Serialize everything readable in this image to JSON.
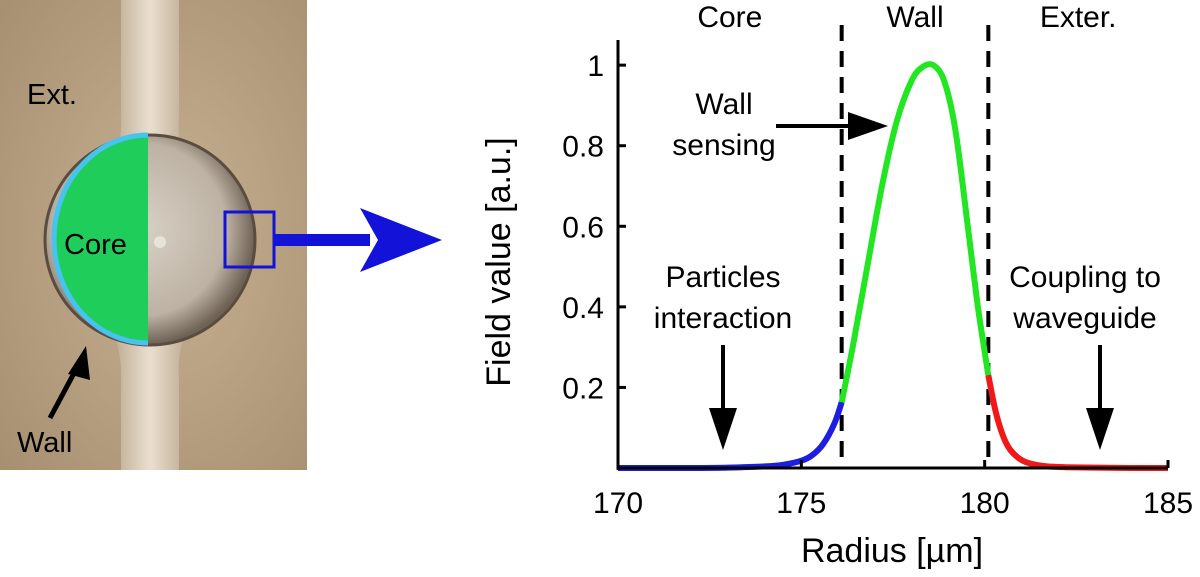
{
  "photo": {
    "labels": {
      "ext": "Ext.",
      "core": "Core",
      "wall": "Wall"
    },
    "colors": {
      "core_fill": "#1fce5a",
      "wall_outline": "#46c3ee",
      "inset_box": "#1212d8",
      "arrow": "#1212d8"
    }
  },
  "chart_data": {
    "type": "line",
    "xlabel": "Radius [µm]",
    "ylabel": "Field value [a.u.]",
    "xlim": [
      170,
      185
    ],
    "ylim": [
      0,
      1.05
    ],
    "xticks": [
      170,
      175,
      180,
      185
    ],
    "yticks": [
      0.2,
      0.4,
      0.6,
      0.8,
      1
    ],
    "grid": false,
    "region_labels": [
      "Core",
      "Wall",
      "Exter."
    ],
    "boundaries": [
      176.1,
      180.1
    ],
    "series": [
      {
        "region": "core",
        "color": "#1e1ee0",
        "x": [
          170,
          172,
          173,
          174,
          174.5,
          175,
          175.3,
          175.6,
          175.9,
          176.1
        ],
        "y": [
          0,
          0,
          0.001,
          0.004,
          0.008,
          0.018,
          0.032,
          0.06,
          0.11,
          0.163
        ]
      },
      {
        "region": "wall",
        "color": "#22e622",
        "x": [
          176.1,
          176.4,
          176.8,
          177.2,
          177.6,
          178.0,
          178.3,
          178.6,
          178.9,
          179.2,
          179.5,
          179.8,
          180.1
        ],
        "y": [
          0.163,
          0.3,
          0.5,
          0.7,
          0.86,
          0.96,
          0.995,
          1.0,
          0.96,
          0.84,
          0.63,
          0.41,
          0.23
        ]
      },
      {
        "region": "exterior",
        "color": "#f01818",
        "x": [
          180.1,
          180.3,
          180.5,
          180.7,
          181.0,
          181.3,
          181.7,
          182.2,
          183,
          184,
          185
        ],
        "y": [
          0.23,
          0.14,
          0.08,
          0.045,
          0.02,
          0.01,
          0.004,
          0.002,
          0.001,
          0,
          0
        ]
      }
    ],
    "annotations": [
      {
        "lines": [
          "Wall",
          "sensing"
        ],
        "x": 176.6,
        "y": 0.86
      },
      {
        "lines": [
          "Particles",
          "interaction"
        ],
        "x": 172.7,
        "y": 0.4
      },
      {
        "lines": [
          "Coupling to",
          "waveguide"
        ],
        "x": 183.6,
        "y": 0.4
      }
    ]
  }
}
